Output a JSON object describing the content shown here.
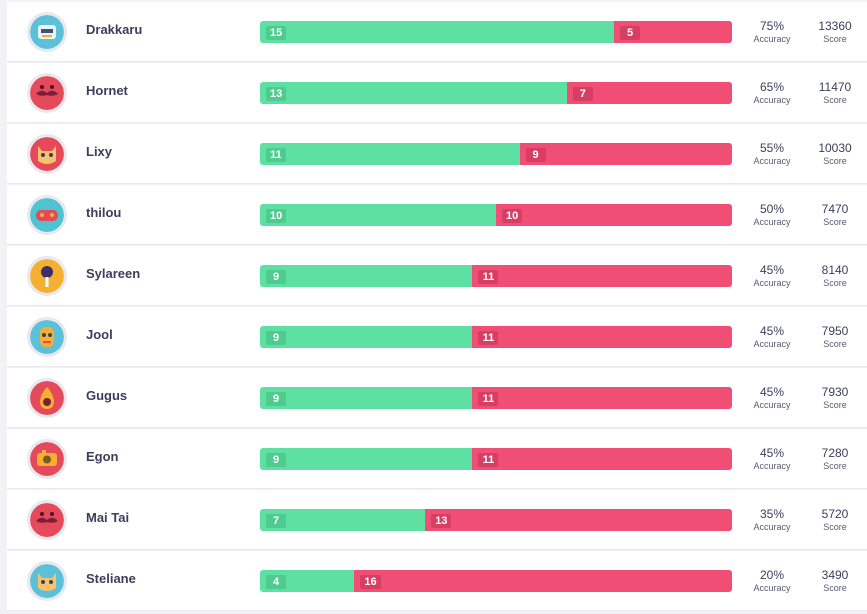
{
  "labels": {
    "accuracy": "Accuracy",
    "score": "Score"
  },
  "colors": {
    "correct": "#5ee0a2",
    "wrong": "#f04e74"
  },
  "players": [
    {
      "name": "Drakkaru",
      "correct": "15",
      "wrong": "5",
      "accuracy": "75%",
      "score": "13360",
      "avatar_icon": "robot-avatar-icon",
      "avatar_color": "#5bc0d8"
    },
    {
      "name": "Hornet",
      "correct": "13",
      "wrong": "7",
      "accuracy": "65%",
      "score": "11470",
      "avatar_icon": "mustache-avatar-icon",
      "avatar_color": "#e44a5a"
    },
    {
      "name": "Lixy",
      "correct": "11",
      "wrong": "9",
      "accuracy": "55%",
      "score": "10030",
      "avatar_icon": "cat-avatar-icon",
      "avatar_color": "#e44a5a"
    },
    {
      "name": "thilou",
      "correct": "10",
      "wrong": "10",
      "accuracy": "50%",
      "score": "7470",
      "avatar_icon": "gamepad-avatar-icon",
      "avatar_color": "#4fc3cf"
    },
    {
      "name": "Sylareen",
      "correct": "9",
      "wrong": "11",
      "accuracy": "45%",
      "score": "8140",
      "avatar_icon": "microphone-avatar-icon",
      "avatar_color": "#f5b031"
    },
    {
      "name": "Jool",
      "correct": "9",
      "wrong": "11",
      "accuracy": "45%",
      "score": "7950",
      "avatar_icon": "face-avatar-icon",
      "avatar_color": "#5bc0d8"
    },
    {
      "name": "Gugus",
      "correct": "9",
      "wrong": "11",
      "accuracy": "45%",
      "score": "7930",
      "avatar_icon": "pear-avatar-icon",
      "avatar_color": "#e44a5a"
    },
    {
      "name": "Egon",
      "correct": "9",
      "wrong": "11",
      "accuracy": "45%",
      "score": "7280",
      "avatar_icon": "camera-avatar-icon",
      "avatar_color": "#e44a5a"
    },
    {
      "name": "Mai Tai",
      "correct": "7",
      "wrong": "13",
      "accuracy": "35%",
      "score": "5720",
      "avatar_icon": "mustache-avatar-icon",
      "avatar_color": "#e44a5a"
    },
    {
      "name": "Steliane",
      "correct": "4",
      "wrong": "16",
      "accuracy": "20%",
      "score": "3490",
      "avatar_icon": "cat-avatar-icon",
      "avatar_color": "#5bc0d8"
    }
  ]
}
